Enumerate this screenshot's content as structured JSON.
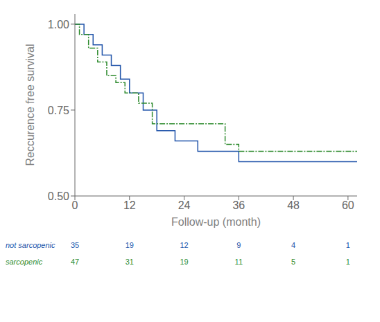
{
  "chart_data": {
    "type": "step",
    "xlabel": "Follow-up (month)",
    "ylabel": "Reccurence free survival",
    "xlim": [
      0,
      62
    ],
    "ylim": [
      0.5,
      1.03
    ],
    "xticks": [
      0,
      12,
      24,
      36,
      48,
      60
    ],
    "yticks": [
      {
        "value": 0.5,
        "label": "0.50"
      },
      {
        "value": 0.75,
        "label": "0.75"
      },
      {
        "value": 1.0,
        "label": "1.00"
      }
    ],
    "grid": false,
    "at_risk_times": [
      0,
      12,
      24,
      36,
      48,
      60
    ],
    "series": [
      {
        "name": "not sarcopenic",
        "color": "#2255aa",
        "line_style": "solid",
        "x": [
          0,
          2,
          4,
          6,
          8,
          10,
          12,
          15,
          18,
          22,
          27,
          36,
          62
        ],
        "values": [
          1.0,
          0.97,
          0.94,
          0.91,
          0.88,
          0.84,
          0.8,
          0.75,
          0.69,
          0.66,
          0.63,
          0.6,
          0.6
        ],
        "at_risk": [
          35,
          19,
          12,
          9,
          4,
          1
        ]
      },
      {
        "name": "sarcopenic",
        "color": "#2e8b2e",
        "line_style": "dashdot",
        "x": [
          0,
          1,
          3,
          5,
          7,
          9,
          11,
          14,
          17,
          31,
          33,
          36,
          62
        ],
        "values": [
          1.0,
          0.97,
          0.93,
          0.89,
          0.85,
          0.83,
          0.8,
          0.77,
          0.71,
          0.71,
          0.65,
          0.63,
          0.63
        ],
        "at_risk": [
          47,
          31,
          19,
          11,
          5,
          1
        ]
      }
    ]
  }
}
